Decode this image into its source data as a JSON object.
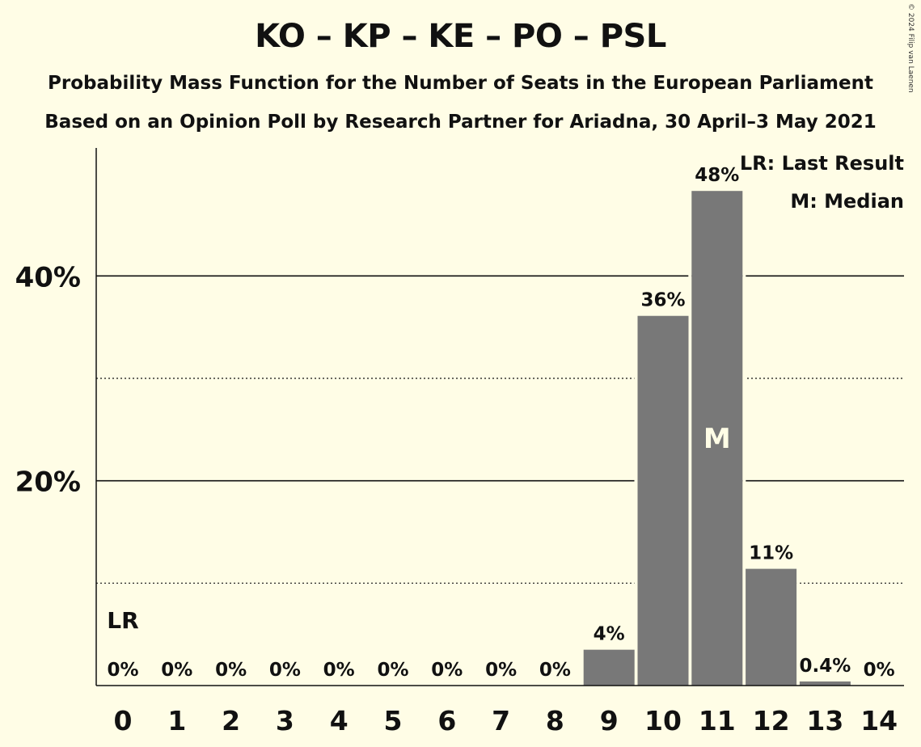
{
  "title": "KO – KP – KE – PO – PSL",
  "subtitle": "Probability Mass Function for the Number of Seats in the European Parliament",
  "subtitle2": "Based on an Opinion Poll by Research Partner for Ariadna, 30 April–3 May 2021",
  "copyright": "© 2024 Filip van Laenen",
  "legend": {
    "last_result": "LR: Last Result",
    "median": "M: Median"
  },
  "markers": {
    "last_result_label": "LR",
    "last_result_seat": 0,
    "median_label": "M",
    "median_seat": 11
  },
  "colors": {
    "background": "#fffde6",
    "bar": "#787878",
    "text": "#111111"
  },
  "chart_data": {
    "type": "bar",
    "categories": [
      "0",
      "1",
      "2",
      "3",
      "4",
      "5",
      "6",
      "7",
      "8",
      "9",
      "10",
      "11",
      "12",
      "13",
      "14"
    ],
    "values": [
      0,
      0,
      0,
      0,
      0,
      0,
      0,
      0,
      0,
      3.5,
      36.1,
      48.3,
      11.4,
      0.4,
      0
    ],
    "value_labels": [
      "0%",
      "0%",
      "0%",
      "0%",
      "0%",
      "0%",
      "0%",
      "0%",
      "0%",
      "4%",
      "36%",
      "48%",
      "11%",
      "0.4%",
      "0%"
    ],
    "ylim": [
      0,
      52.5
    ],
    "yticks": [
      20,
      40
    ],
    "ytick_labels": [
      "20%",
      "40%"
    ],
    "minor_gridlines": [
      10,
      30
    ],
    "grid": true,
    "legend_position": "top-right",
    "xlabel": "",
    "ylabel": ""
  }
}
